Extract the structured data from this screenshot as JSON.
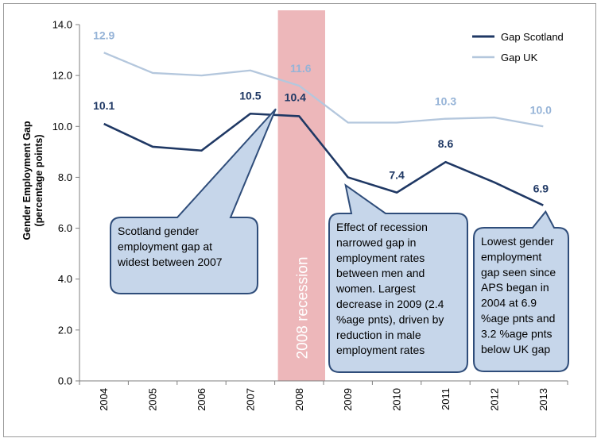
{
  "chart_data": {
    "type": "line",
    "title": "",
    "ylabel_line1": "Gender Employment Gap",
    "ylabel_line2": "(percentage points)",
    "xlabel": "",
    "ylim": [
      0,
      14
    ],
    "yticks": [
      "0.0",
      "2.0",
      "4.0",
      "6.0",
      "8.0",
      "10.0",
      "12.0",
      "14.0"
    ],
    "categories": [
      "2004",
      "2005",
      "2006",
      "2007",
      "2008",
      "2009",
      "2010",
      "2011",
      "2012",
      "2013"
    ],
    "grid": false,
    "legend_position": "top-right",
    "series": [
      {
        "name": "Gap Scotland",
        "color": "#1f3864",
        "values": [
          10.1,
          9.2,
          9.05,
          10.5,
          10.4,
          8.0,
          7.4,
          8.6,
          7.8,
          6.9
        ]
      },
      {
        "name": "Gap UK",
        "color": "#b4c7dd",
        "values": [
          12.9,
          12.1,
          12.0,
          12.2,
          11.6,
          10.15,
          10.15,
          10.3,
          10.35,
          10.0
        ]
      }
    ],
    "data_labels": [
      {
        "series": 0,
        "index": 0,
        "text": "10.1"
      },
      {
        "series": 0,
        "index": 3,
        "text": "10.5"
      },
      {
        "series": 0,
        "index": 4,
        "text": "10.4"
      },
      {
        "series": 0,
        "index": 6,
        "text": "7.4"
      },
      {
        "series": 0,
        "index": 7,
        "text": "8.6"
      },
      {
        "series": 0,
        "index": 9,
        "text": "6.9"
      },
      {
        "series": 1,
        "index": 0,
        "text": "12.9"
      },
      {
        "series": 1,
        "index": 4,
        "text": "11.6"
      },
      {
        "series": 1,
        "index": 7,
        "text": "10.3"
      },
      {
        "series": 1,
        "index": 9,
        "text": "10.0"
      }
    ],
    "recession_band": {
      "label": "2008 recession",
      "from": "2008",
      "to": "2009",
      "color": "#e8a5a9"
    },
    "callouts": [
      {
        "lines": [
          "Scotland gender",
          "employment gap at",
          "widest between 2007"
        ],
        "points_to": {
          "category": "2007",
          "value": 10.5
        }
      },
      {
        "lines": [
          "Effect of recession",
          "narrowed gap in",
          "employment rates",
          "between men and",
          "women. Largest",
          "decrease in 2009 (2.4",
          "%age pnts), driven by",
          "reduction in male",
          "employment rates"
        ],
        "points_to": {
          "category": "2009",
          "value": 8.0
        }
      },
      {
        "lines": [
          "Lowest gender",
          "employment",
          "gap seen since",
          "APS began in",
          "2004 at 6.9",
          "%age pnts and",
          "3.2 %age pnts",
          "below UK gap"
        ],
        "points_to": {
          "category": "2013",
          "value": 6.9
        }
      }
    ]
  }
}
